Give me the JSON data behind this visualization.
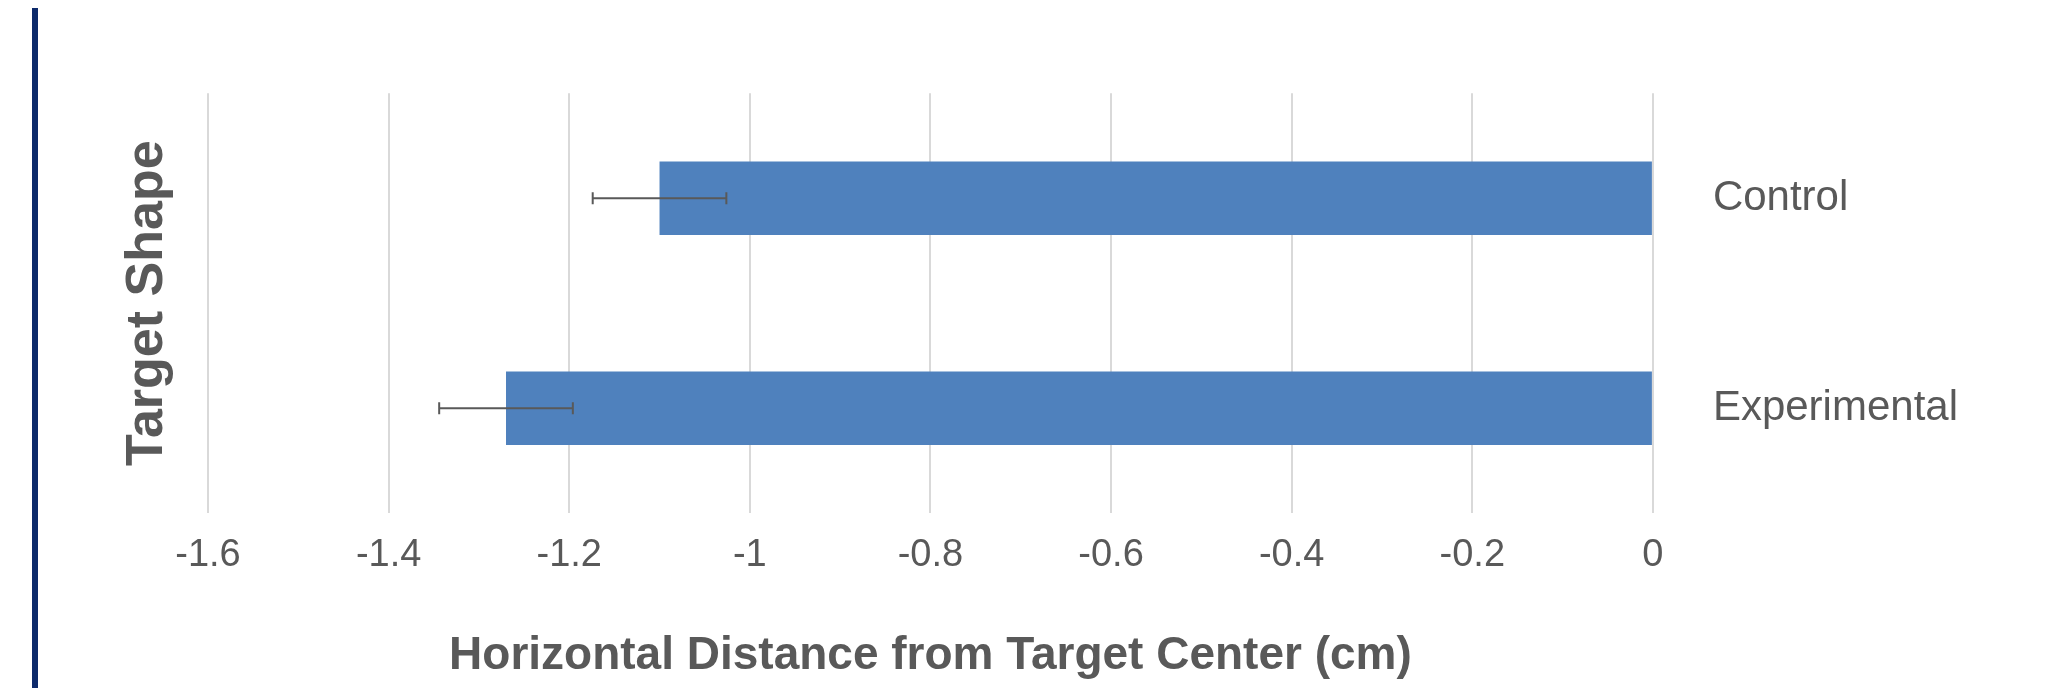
{
  "chart_data": {
    "type": "bar",
    "orientation": "horizontal",
    "categories": [
      "Control",
      "Experimental"
    ],
    "values": [
      -1.1,
      -1.27
    ],
    "errors": [
      0.074,
      0.074
    ],
    "color": "#4f81bd",
    "xlabel": "Horizontal Distance from Target Center (cm)",
    "ylabel": "Target Shape",
    "xlim": [
      -1.6,
      0
    ],
    "xticks": [
      -1.6,
      -1.4,
      -1.2,
      -1,
      -0.8,
      -0.6,
      -0.4,
      -0.2,
      0
    ],
    "grid": "x",
    "legend": false
  }
}
